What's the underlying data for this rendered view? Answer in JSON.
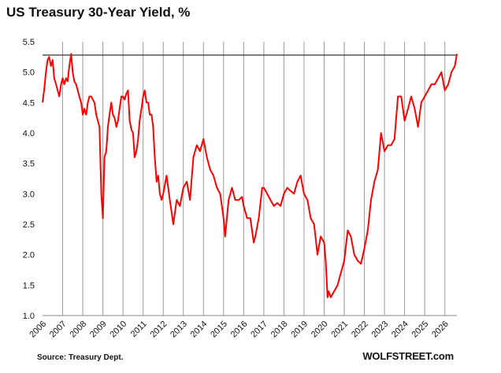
{
  "chart_data": {
    "type": "line",
    "title": "US Treasury 30-Year Yield, %",
    "xlabel": "",
    "ylabel": "",
    "ylim": [
      1.0,
      5.5
    ],
    "yticks": [
      "1.0",
      "1.5",
      "2.0",
      "2.5",
      "3.0",
      "3.5",
      "4.0",
      "4.5",
      "5.0",
      "5.5"
    ],
    "xticks": [
      "2006",
      "2007",
      "2008",
      "2009",
      "2010",
      "2011",
      "2012",
      "2013",
      "2014",
      "2015",
      "2016",
      "2017",
      "2018",
      "2019",
      "2020",
      "2021",
      "2022",
      "2023",
      "2024",
      "2025",
      "2026"
    ],
    "grid": "vertical lines at each year",
    "reference_line": 5.28,
    "series": [
      {
        "color": "#ff0000",
        "x": [
          2006.0,
          2006.08,
          2006.17,
          2006.25,
          2006.33,
          2006.42,
          2006.5,
          2006.58,
          2006.67,
          2006.75,
          2006.83,
          2006.92,
          2007.0,
          2007.08,
          2007.17,
          2007.25,
          2007.33,
          2007.42,
          2007.5,
          2007.58,
          2007.67,
          2007.75,
          2007.83,
          2007.92,
          2008.0,
          2008.08,
          2008.17,
          2008.25,
          2008.33,
          2008.42,
          2008.5,
          2008.58,
          2008.67,
          2008.75,
          2008.83,
          2008.92,
          2009.0,
          2009.08,
          2009.17,
          2009.25,
          2009.33,
          2009.42,
          2009.5,
          2009.58,
          2009.67,
          2009.75,
          2009.83,
          2009.92,
          2010.0,
          2010.08,
          2010.17,
          2010.25,
          2010.33,
          2010.42,
          2010.5,
          2010.58,
          2010.67,
          2010.75,
          2010.83,
          2010.92,
          2011.0,
          2011.08,
          2011.17,
          2011.25,
          2011.33,
          2011.42,
          2011.5,
          2011.58,
          2011.67,
          2011.75,
          2011.83,
          2011.92,
          2012.0,
          2012.17,
          2012.33,
          2012.5,
          2012.67,
          2012.83,
          2013.0,
          2013.17,
          2013.33,
          2013.5,
          2013.67,
          2013.83,
          2014.0,
          2014.17,
          2014.33,
          2014.5,
          2014.67,
          2014.83,
          2015.0,
          2015.08,
          2015.25,
          2015.42,
          2015.58,
          2015.75,
          2015.92,
          2016.0,
          2016.17,
          2016.33,
          2016.5,
          2016.58,
          2016.75,
          2016.92,
          2017.0,
          2017.17,
          2017.33,
          2017.5,
          2017.67,
          2017.83,
          2018.0,
          2018.17,
          2018.33,
          2018.5,
          2018.67,
          2018.83,
          2019.0,
          2019.17,
          2019.33,
          2019.5,
          2019.67,
          2019.83,
          2020.0,
          2020.08,
          2020.17,
          2020.22,
          2020.33,
          2020.5,
          2020.67,
          2020.83,
          2021.0,
          2021.17,
          2021.33,
          2021.5,
          2021.67,
          2021.83,
          2022.0,
          2022.17,
          2022.33,
          2022.5,
          2022.67,
          2022.83,
          2023.0,
          2023.17,
          2023.33,
          2023.5,
          2023.67,
          2023.83,
          2024.0,
          2024.17,
          2024.33,
          2024.5,
          2024.67,
          2024.83,
          2025.0,
          2025.17,
          2025.33,
          2025.5,
          2025.67,
          2025.83,
          2026.0,
          2026.17,
          2026.33,
          2026.5,
          2026.6
        ],
        "values": [
          4.5,
          4.7,
          5.0,
          5.2,
          5.25,
          5.1,
          5.2,
          4.9,
          4.8,
          4.7,
          4.6,
          4.8,
          4.9,
          4.8,
          4.9,
          4.85,
          5.1,
          5.3,
          5.0,
          4.85,
          4.8,
          4.7,
          4.6,
          4.5,
          4.3,
          4.4,
          4.3,
          4.5,
          4.6,
          4.6,
          4.55,
          4.5,
          4.3,
          4.2,
          4.1,
          3.0,
          2.6,
          3.6,
          3.7,
          4.1,
          4.3,
          4.5,
          4.3,
          4.25,
          4.1,
          4.2,
          4.4,
          4.6,
          4.6,
          4.55,
          4.65,
          4.7,
          4.2,
          4.05,
          4.0,
          3.6,
          3.7,
          3.9,
          4.2,
          4.4,
          4.6,
          4.7,
          4.5,
          4.5,
          4.3,
          4.3,
          4.1,
          3.6,
          3.2,
          3.3,
          3.0,
          2.9,
          3.0,
          3.3,
          2.9,
          2.5,
          2.9,
          2.8,
          3.1,
          3.2,
          2.9,
          3.6,
          3.8,
          3.7,
          3.9,
          3.6,
          3.4,
          3.3,
          3.1,
          3.0,
          2.6,
          2.3,
          2.9,
          3.1,
          2.9,
          2.9,
          2.95,
          2.8,
          2.6,
          2.6,
          2.2,
          2.3,
          2.6,
          3.1,
          3.1,
          3.0,
          2.9,
          2.8,
          2.85,
          2.8,
          3.0,
          3.1,
          3.05,
          3.0,
          3.2,
          3.3,
          3.0,
          2.9,
          2.6,
          2.5,
          2.0,
          2.3,
          2.2,
          1.9,
          1.3,
          1.4,
          1.3,
          1.4,
          1.5,
          1.7,
          1.9,
          2.4,
          2.3,
          2.0,
          1.9,
          1.85,
          2.1,
          2.4,
          2.9,
          3.2,
          3.4,
          4.0,
          3.7,
          3.8,
          3.8,
          3.9,
          4.6,
          4.6,
          4.2,
          4.4,
          4.6,
          4.4,
          4.1,
          4.5,
          4.6,
          4.7,
          4.8,
          4.8,
          4.9,
          5.0,
          4.7,
          4.8,
          5.0,
          5.1,
          5.3
        ]
      }
    ]
  },
  "source": "Source: Treasury Dept.",
  "brand": "WOLFSTREET.com",
  "colors": {
    "line": "#ff0000",
    "reference": "#333333",
    "grid": "#999999",
    "axis": "#888888"
  }
}
